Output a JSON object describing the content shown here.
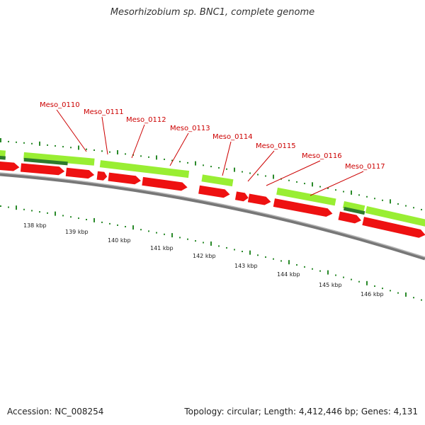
{
  "title": "Mesorhizobium sp. BNC1, complete genome",
  "footer": {
    "accession": "Accession: NC_008254",
    "summary": "Topology: circular; Length: 4,412,446 bp; Genes: 4,131"
  },
  "colors": {
    "cds": "#ee1111",
    "gene": "#99ee33",
    "gene_dark": "#2c7a2c",
    "backbone": "#777777",
    "tick": "#2a8a2a",
    "label": "#cc0000",
    "leader": "#cc0000"
  },
  "genes": [
    {
      "name": "Meso_0110"
    },
    {
      "name": "Meso_0111"
    },
    {
      "name": "Meso_0112"
    },
    {
      "name": "Meso_0113"
    },
    {
      "name": "Meso_0114"
    },
    {
      "name": "Meso_0115"
    },
    {
      "name": "Meso_0116"
    },
    {
      "name": "Meso_0117"
    }
  ],
  "scale_ticks": [
    "138 kbp",
    "139 kbp",
    "140 kbp",
    "141 kbp",
    "142 kbp",
    "143 kbp",
    "144 kbp",
    "145 kbp",
    "146 kbp"
  ]
}
